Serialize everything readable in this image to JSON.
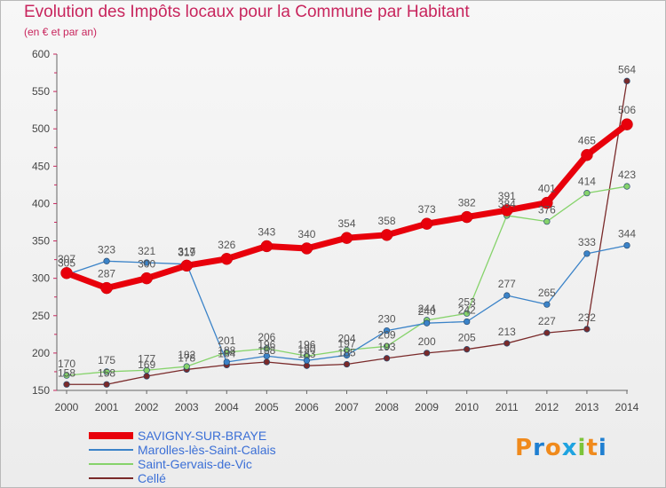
{
  "header": {
    "title": "Evolution des Impôts locaux pour la Commune par Habitant",
    "subtitle": "(en € et par an)"
  },
  "logo": {
    "letters": [
      "P",
      "r",
      "o",
      "x",
      "i",
      "t",
      "i"
    ],
    "colors": [
      "#f08a1c",
      "#1f7fd1",
      "#f08a1c",
      "#2aa0dd",
      "#7cc43a",
      "#f08a1c",
      "#1f7fd1"
    ]
  },
  "chart_data": {
    "type": "line",
    "title": "Evolution des Impôts locaux pour la Commune par Habitant",
    "ylabel": "(en € et par an)",
    "xlabel": "",
    "ylim": [
      150,
      600
    ],
    "yticks": [
      150,
      200,
      250,
      300,
      350,
      400,
      450,
      500,
      550,
      600
    ],
    "grid": false,
    "legend": "bottom-left",
    "categories": [
      "2000",
      "2001",
      "2002",
      "2003",
      "2004",
      "2005",
      "2006",
      "2007",
      "2008",
      "2009",
      "2010",
      "2011",
      "2012",
      "2013",
      "2014"
    ],
    "series": [
      {
        "name": "SAVIGNY-SUR-BRAYE",
        "color": "#e8000b",
        "values": [
          307,
          287,
          300,
          317,
          326,
          343,
          340,
          354,
          358,
          373,
          382,
          391,
          401,
          465,
          506
        ]
      },
      {
        "name": "Marolles-lès-Saint-Calais",
        "color": "#3b83c8",
        "values": [
          305,
          323,
          321,
          319,
          188,
          196,
          190,
          197,
          230,
          240,
          242,
          277,
          265,
          333,
          344
        ]
      },
      {
        "name": "Saint-Gervais-de-Vic",
        "color": "#86d36b",
        "values": [
          170,
          175,
          177,
          182,
          201,
          206,
          196,
          204,
          209,
          244,
          253,
          384,
          376,
          414,
          423
        ]
      },
      {
        "name": "Cellé",
        "color": "#7a2a2a",
        "values": [
          158,
          158,
          169,
          178,
          184,
          188,
          183,
          185,
          193,
          200,
          205,
          213,
          227,
          232,
          564
        ]
      }
    ]
  }
}
